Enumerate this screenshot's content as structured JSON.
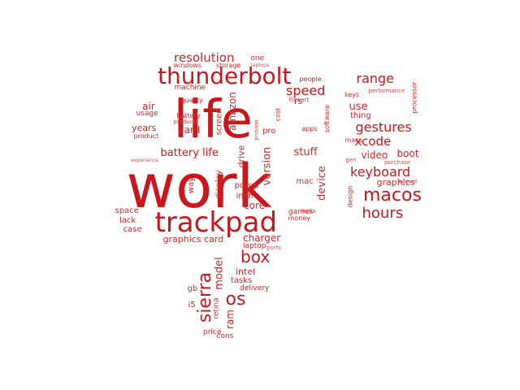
{
  "colors": {
    "dark": "#c8181c",
    "light": "#e04a4a",
    "mid": "#d02a2c"
  },
  "words": [
    {
      "text": "work"
    },
    {
      "text": "life"
    },
    {
      "text": "trackpad"
    },
    {
      "text": "thunderbolt"
    },
    {
      "text": "macos"
    },
    {
      "text": "box"
    },
    {
      "text": "os"
    },
    {
      "text": "sierra"
    },
    {
      "text": "hours"
    },
    {
      "text": "keyboard"
    },
    {
      "text": "gestures"
    },
    {
      "text": "range"
    },
    {
      "text": "resolution"
    },
    {
      "text": "speed"
    },
    {
      "text": "battery life"
    },
    {
      "text": "xcode"
    },
    {
      "text": "amazon"
    },
    {
      "text": "card"
    },
    {
      "text": "air"
    },
    {
      "text": "years"
    },
    {
      "text": "use"
    },
    {
      "text": "video"
    },
    {
      "text": "boot"
    },
    {
      "text": "graphics"
    },
    {
      "text": "stuff"
    },
    {
      "text": "version"
    },
    {
      "text": "device"
    },
    {
      "text": "core"
    },
    {
      "text": "charger"
    },
    {
      "text": "graphics card"
    },
    {
      "text": "drive"
    },
    {
      "text": "screen"
    },
    {
      "text": "display"
    },
    {
      "text": "way"
    },
    {
      "text": "model"
    },
    {
      "text": "ram"
    },
    {
      "text": "intel"
    },
    {
      "text": "tasks"
    },
    {
      "text": "gb"
    },
    {
      "text": "pro"
    },
    {
      "text": "mac"
    },
    {
      "text": "games"
    },
    {
      "text": "power"
    },
    {
      "text": "inch"
    },
    {
      "text": "space"
    },
    {
      "text": "lack"
    },
    {
      "text": "case"
    },
    {
      "text": "i5"
    },
    {
      "text": "retina"
    },
    {
      "text": "price"
    },
    {
      "text": "cons"
    },
    {
      "text": "delivery"
    },
    {
      "text": "laptop"
    },
    {
      "text": "ports"
    },
    {
      "text": "money"
    },
    {
      "text": "india"
    },
    {
      "text": "apps"
    },
    {
      "text": "software"
    },
    {
      "text": "cost"
    },
    {
      "text": "design"
    },
    {
      "text": "macs"
    },
    {
      "text": "gen"
    },
    {
      "text": "thing"
    },
    {
      "text": "keys"
    },
    {
      "text": "performance"
    },
    {
      "text": "processor"
    },
    {
      "text": "purchase"
    },
    {
      "text": "amount"
    },
    {
      "text": "people"
    },
    {
      "text": "flipkart"
    },
    {
      "text": "machine"
    },
    {
      "text": "quality"
    },
    {
      "text": "usage"
    },
    {
      "text": "battery"
    },
    {
      "text": "products"
    },
    {
      "text": "product"
    },
    {
      "text": "experience"
    },
    {
      "text": "windows"
    },
    {
      "text": "storage"
    },
    {
      "text": "laptops"
    },
    {
      "text": "one"
    },
    {
      "text": "rs"
    },
    {
      "text": "problem"
    }
  ]
}
